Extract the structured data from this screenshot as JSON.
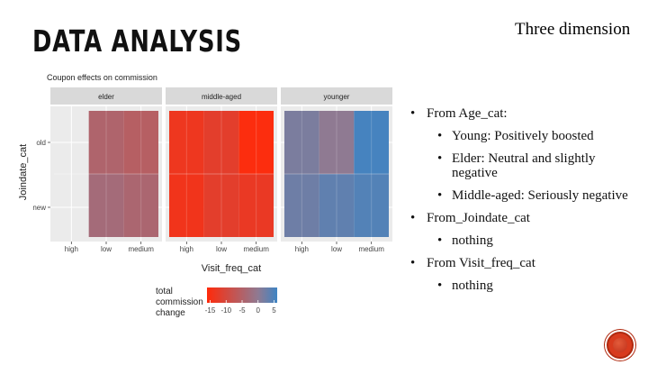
{
  "slide": {
    "title": "DATA ANALYSIS",
    "subtitle": "Three dimension"
  },
  "bullets": [
    {
      "level": 1,
      "text": "From Age_cat:"
    },
    {
      "level": 2,
      "text": "Young: Positively boosted"
    },
    {
      "level": 2,
      "text": "Elder: Neutral and slightly negative"
    },
    {
      "level": 2,
      "text": "Middle-aged: Seriously negative"
    },
    {
      "level": 1,
      "text": "From_Joindate_cat"
    },
    {
      "level": 2,
      "text": "nothing"
    },
    {
      "level": 1,
      "text": "From Visit_freq_cat"
    },
    {
      "level": 2,
      "text": "nothing"
    }
  ],
  "colors": {
    "low": "#ff2a0a",
    "mid": "#8f7a92",
    "high": "#3f84c3",
    "panel_bg": "#ebebeb",
    "strip_bg": "#d9d9d9",
    "accent": "#d83b1e"
  },
  "chart_data": {
    "type": "heatmap",
    "title": "Coupon effects on commission",
    "xlabel": "Visit_freq_cat",
    "ylabel": "Joindate_cat",
    "x_categories": [
      "high",
      "low",
      "medium"
    ],
    "y_categories": [
      "new",
      "old"
    ],
    "facets": [
      {
        "name": "elder",
        "cells": [
          {
            "x": "low",
            "y": "old",
            "value": -4.5
          },
          {
            "x": "medium",
            "y": "old",
            "value": -5.5
          },
          {
            "x": "low",
            "y": "new",
            "value": -3.0
          },
          {
            "x": "medium",
            "y": "new",
            "value": -4.0
          }
        ]
      },
      {
        "name": "middle-aged",
        "cells": [
          {
            "x": "high",
            "y": "old",
            "value": -13.5
          },
          {
            "x": "low",
            "y": "old",
            "value": -12.0
          },
          {
            "x": "medium",
            "y": "old",
            "value": -15.5
          },
          {
            "x": "high",
            "y": "new",
            "value": -14.0
          },
          {
            "x": "low",
            "y": "new",
            "value": -12.0
          },
          {
            "x": "medium",
            "y": "new",
            "value": -13.0
          }
        ]
      },
      {
        "name": "younger",
        "cells": [
          {
            "x": "high",
            "y": "old",
            "value": 1.5
          },
          {
            "x": "low",
            "y": "old",
            "value": 0.0
          },
          {
            "x": "medium",
            "y": "old",
            "value": 5.5
          },
          {
            "x": "high",
            "y": "new",
            "value": 2.5
          },
          {
            "x": "low",
            "y": "new",
            "value": 3.5
          },
          {
            "x": "medium",
            "y": "new",
            "value": 4.5
          }
        ]
      }
    ],
    "legend": {
      "title": "total commission change",
      "ticks": [
        -15,
        -10,
        -5,
        0,
        5
      ],
      "range": [
        -16,
        6
      ],
      "placement": "bottom"
    },
    "grid": true
  }
}
